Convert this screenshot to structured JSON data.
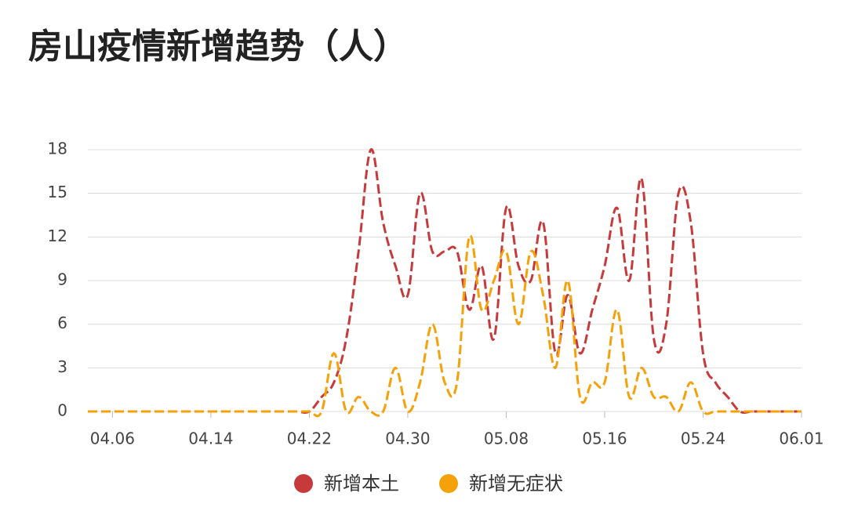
{
  "chart_data": {
    "type": "line",
    "title": "房山疫情新增趋势（人）",
    "categories": [
      null,
      null,
      "04.06",
      null,
      null,
      null,
      null,
      null,
      null,
      null,
      "04.14",
      null,
      null,
      null,
      null,
      null,
      null,
      null,
      "04.22",
      null,
      null,
      null,
      null,
      null,
      null,
      null,
      "04.30",
      null,
      null,
      null,
      null,
      null,
      null,
      null,
      "05.08",
      null,
      null,
      null,
      null,
      null,
      null,
      null,
      "05.16",
      null,
      null,
      null,
      null,
      null,
      null,
      null,
      "05.24",
      null,
      null,
      null,
      null,
      null,
      null,
      null,
      "06.01"
    ],
    "series": [
      {
        "name": "新增本土",
        "color": "#c73a3b",
        "values": [
          0,
          0,
          0,
          0,
          0,
          0,
          0,
          0,
          0,
          0,
          0,
          0,
          0,
          0,
          0,
          0,
          0,
          0,
          0,
          1,
          2,
          5,
          11,
          18,
          13,
          10,
          8,
          15,
          11,
          11,
          11,
          7,
          10,
          5,
          14,
          10,
          9,
          13,
          4,
          8,
          4,
          7,
          10,
          14,
          9,
          16,
          5,
          6,
          15,
          13,
          4,
          2,
          1,
          0,
          0,
          0,
          0,
          0,
          0
        ]
      },
      {
        "name": "新增无症状",
        "color": "#f5a10a",
        "values": [
          0,
          0,
          0,
          0,
          0,
          0,
          0,
          0,
          0,
          0,
          0,
          0,
          0,
          0,
          0,
          0,
          0,
          0,
          0,
          0,
          4,
          0,
          1,
          0,
          0,
          3,
          0,
          2,
          6,
          2,
          2,
          12,
          7,
          9,
          11,
          6,
          11,
          8,
          3,
          9,
          1,
          2,
          2,
          7,
          1,
          3,
          1,
          1,
          0,
          2,
          0,
          0,
          0,
          0,
          0,
          0,
          0,
          0,
          0
        ]
      }
    ],
    "ylim": [
      0,
      18
    ],
    "yticks": [
      0,
      3,
      6,
      9,
      12,
      15,
      18
    ],
    "grid": true,
    "legend": "bottom"
  }
}
